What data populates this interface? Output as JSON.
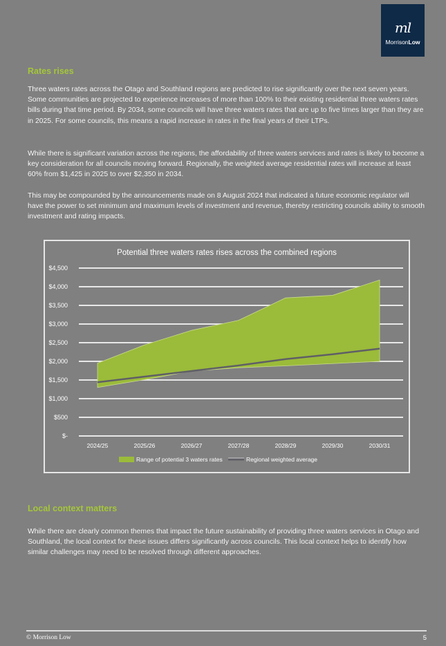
{
  "logo": {
    "mark": "ml",
    "name_part1": "Morrison",
    "name_part2": "Low",
    "bg_color": "#0f2a47"
  },
  "sections": [
    {
      "heading": "Rates rises",
      "paragraphs": [
        "Three waters rates across the Otago and Southland regions are predicted to rise significantly over the next seven years. Some communities are projected to experience increases of more than 100% to their existing residential three waters rates bills during that time period.  By 2034, some councils will have three waters rates that are up to five times larger than they are in 2025.  For some councils, this means a rapid increase in rates in the final years of their LTPs.",
        "While there is significant variation across the regions, the affordability of three waters services and rates is likely to become a key consideration for all councils moving forward.  Regionally, the weighted average residential rates will increase at least 60% from $1,425 in 2025 to over $2,350 in 2034.",
        "This may be compounded by the announcements made on 8 August 2024 that indicated a future economic regulator will have the power to set minimum and maximum levels of investment and revenue, thereby restricting councils ability to smooth investment and rating impacts."
      ]
    },
    {
      "heading": "Local context matters",
      "paragraphs": [
        "While there are clearly common themes that impact the future sustainability of providing three waters services in Otago and Southland, the local context for these issues differs significantly across councils.  This local context helps to identify how similar challenges may need to be resolved through different approaches."
      ]
    }
  ],
  "chart_data": {
    "type": "area",
    "title": "Potential three waters rates rises across the combined regions",
    "xlabel": "",
    "ylabel": "",
    "categories": [
      "2024/25",
      "2025/26",
      "2026/27",
      "2027/28",
      "2028/29",
      "2029/30",
      "2030/31"
    ],
    "y_ticks": [
      "$-",
      "$500",
      "$1,000",
      "$1,500",
      "$2,000",
      "$2,500",
      "$3,000",
      "$3,500",
      "$4,000",
      "$4,500"
    ],
    "ylim": [
      0,
      4500
    ],
    "grid": true,
    "legend_position": "bottom",
    "series": [
      {
        "name": "Range of potential 3 waters rates (upper)",
        "values": [
          1950,
          2440,
          2830,
          3100,
          3700,
          3770,
          4180
        ]
      },
      {
        "name": "Range of potential 3 waters rates (lower)",
        "values": [
          1300,
          1510,
          1740,
          1830,
          1880,
          1940,
          2000
        ]
      },
      {
        "name": "Regional weighted average",
        "values": [
          1440,
          1590,
          1740,
          1890,
          2060,
          2190,
          2340
        ]
      }
    ],
    "legend": [
      "Range of potential 3 waters rates",
      "Regional weighted average"
    ],
    "colors": {
      "range": "#9bbb3a",
      "average": "#5f5f66",
      "grid": "#e8e8e8"
    }
  },
  "footer": {
    "copyright": "© Morrison Low",
    "page_number": "5"
  }
}
